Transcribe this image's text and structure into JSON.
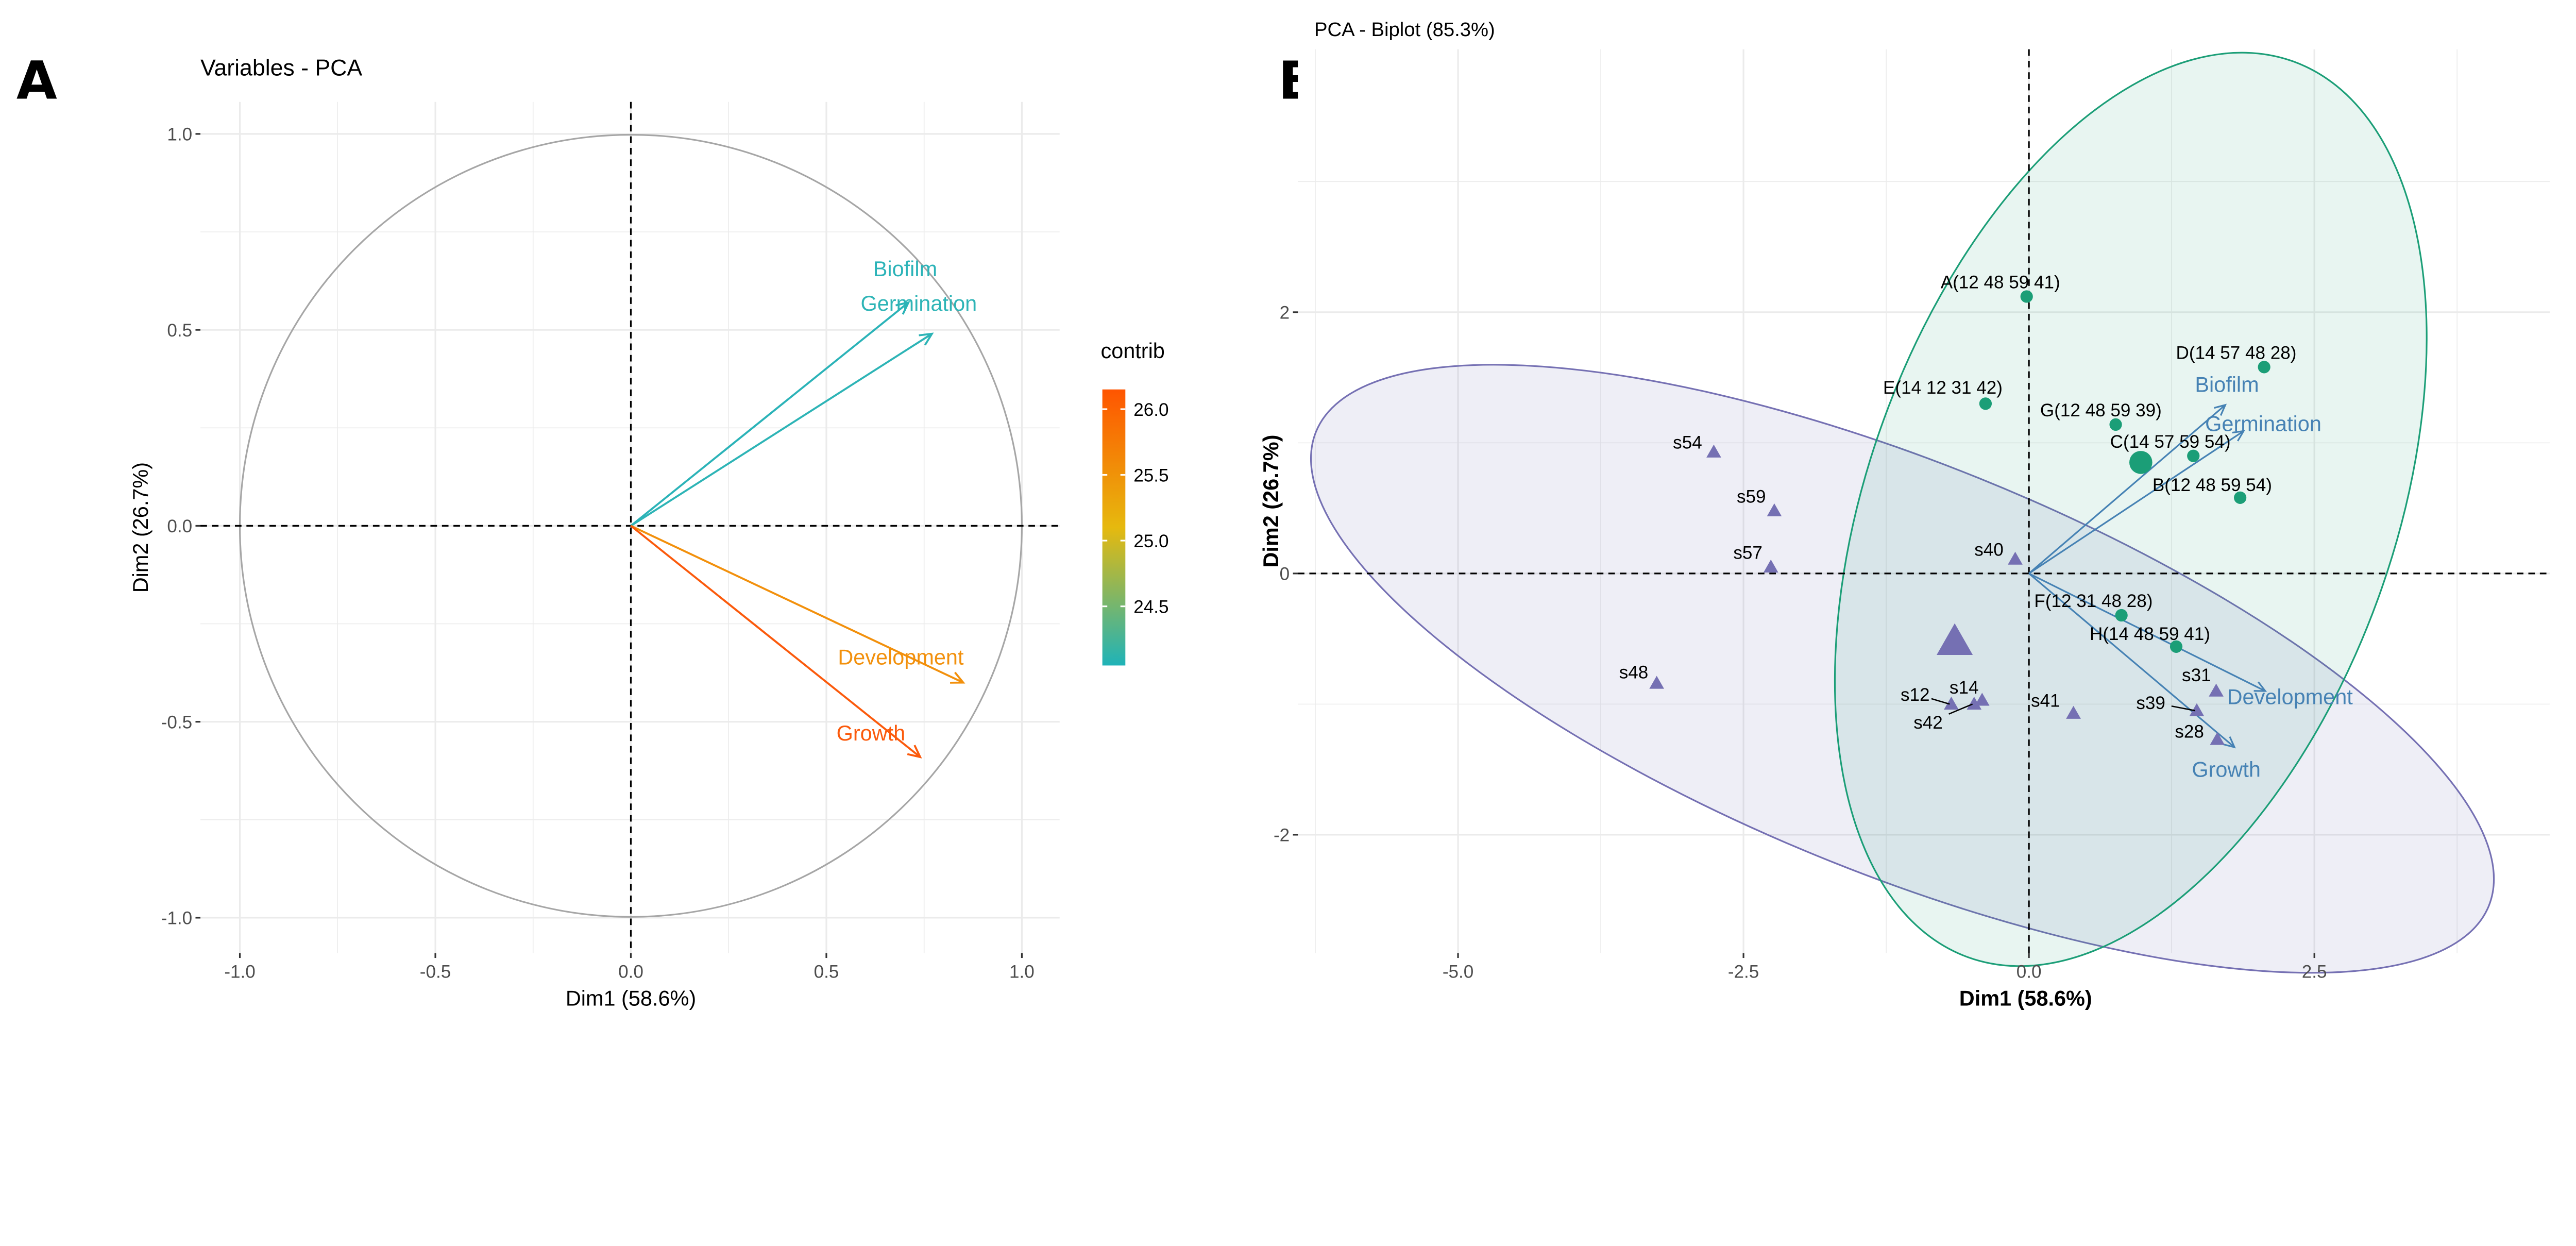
{
  "panels": {
    "a": "A",
    "b": "B"
  },
  "chart_data": [
    {
      "type": "scatter",
      "title": "Variables - PCA",
      "xlabel": "Dim1 (58.6%)",
      "ylabel": "Dim2 (26.7%)",
      "xlim": [
        -1.1,
        1.1
      ],
      "ylim": [
        -1.09,
        1.08
      ],
      "xticks": [
        "-1.0",
        "-0.5",
        "0.0",
        "0.5",
        "1.0"
      ],
      "xtick_values": [
        -1,
        -0.5,
        0,
        0.5,
        1
      ],
      "yticks": [
        "1.0",
        "0.5",
        "0.0",
        "-0.5",
        "-1.0"
      ],
      "ytick_values": [
        1,
        0.5,
        0,
        -0.5,
        -1
      ],
      "grid": true,
      "legend": {
        "title": "contrib",
        "position": "right",
        "ticks": [
          "26.0",
          "25.5",
          "25.0",
          "24.5"
        ],
        "tick_values": [
          26.0,
          25.5,
          25.0,
          24.5
        ],
        "range": [
          24.05,
          26.15
        ],
        "colors": [
          "#1fb3b8",
          "#e6b90e",
          "#ff5500"
        ]
      },
      "variables": [
        {
          "name": "Biofilm",
          "x": 0.71,
          "y": 0.57,
          "contrib": 24.1,
          "color": "#2bb3b8"
        },
        {
          "name": "Germination",
          "x": 0.77,
          "y": 0.49,
          "contrib": 24.2,
          "color": "#2db4b6"
        },
        {
          "name": "Development",
          "x": 0.85,
          "y": -0.4,
          "contrib": 25.6,
          "color": "#f2900c"
        },
        {
          "name": "Growth",
          "x": 0.74,
          "y": -0.59,
          "contrib": 26.1,
          "color": "#fb5a0c"
        }
      ]
    },
    {
      "type": "scatter",
      "title": "PCA - Biplot (85.3%)",
      "xlabel": "Dim1 (58.6%)",
      "ylabel": "Dim2 (26.7%)",
      "xlim": [
        -6.4,
        4.56
      ],
      "ylim": [
        -2.9,
        4.0
      ],
      "xticks": [
        "-5.0",
        "-2.5",
        "0.0",
        "2.5"
      ],
      "xtick_values": [
        -5,
        -2.5,
        0,
        2.5
      ],
      "yticks": [
        "2",
        "0",
        "-2"
      ],
      "ytick_values": [
        2,
        0,
        -2
      ],
      "grid": true,
      "colors": {
        "group1": "#1b9e77",
        "group2": "#7570b3",
        "arrows": "#4682b4"
      },
      "group1_points": [
        {
          "label": "A(12 48 59 41)",
          "x": -0.02,
          "y": 2.12
        },
        {
          "label": "D(14 57 48 28)",
          "x": 2.06,
          "y": 1.58
        },
        {
          "label": "E(14 12 31 42)",
          "x": -0.38,
          "y": 1.3
        },
        {
          "label": "G(12 48 59 39)",
          "x": 0.76,
          "y": 1.14
        },
        {
          "label": "C(14 57 59 54)",
          "x": 1.44,
          "y": 0.9
        },
        {
          "label": "B(12 48 59 54)",
          "x": 1.85,
          "y": 0.58
        },
        {
          "label": "F(12 31 48 28)",
          "x": 0.81,
          "y": -0.32
        },
        {
          "label": "H(14 48 59 41)",
          "x": 1.29,
          "y": -0.56
        }
      ],
      "group1_mean": {
        "x": 0.98,
        "y": 0.85
      },
      "group2_points": [
        {
          "label": "s54",
          "x": -2.76,
          "y": 0.93
        },
        {
          "label": "s59",
          "x": -2.23,
          "y": 0.48
        },
        {
          "label": "s57",
          "x": -2.26,
          "y": 0.05
        },
        {
          "label": "s40",
          "x": -0.12,
          "y": 0.11
        },
        {
          "label": "s48",
          "x": -3.26,
          "y": -0.84
        },
        {
          "label": "s12",
          "x": -0.68,
          "y": -1.0
        },
        {
          "label": "s14",
          "x": -0.41,
          "y": -0.97
        },
        {
          "label": "s42",
          "x": -0.48,
          "y": -1.0
        },
        {
          "label": "s41",
          "x": 0.39,
          "y": -1.07
        },
        {
          "label": "s31",
          "x": 1.64,
          "y": -0.9
        },
        {
          "label": "s39",
          "x": 1.47,
          "y": -1.05
        },
        {
          "label": "s28",
          "x": 1.65,
          "y": -1.27
        }
      ],
      "group2_mean": {
        "x": -0.65,
        "y": -0.52
      },
      "variables": [
        {
          "name": "Biofilm",
          "x": 1.72,
          "y": 1.29
        },
        {
          "name": "Germination",
          "x": 1.88,
          "y": 1.09
        },
        {
          "name": "Development",
          "x": 2.07,
          "y": -0.9
        },
        {
          "name": "Growth",
          "x": 1.8,
          "y": -1.33
        }
      ]
    }
  ]
}
